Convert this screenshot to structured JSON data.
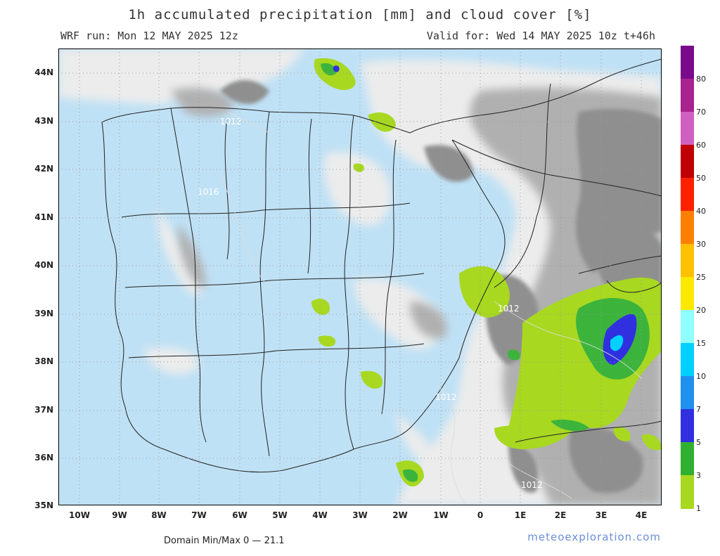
{
  "header": {
    "title": "1h accumulated precipitation [mm] and cloud cover [%]",
    "run": "WRF run: Mon 12 MAY 2025 12z",
    "valid": "Valid for: Wed 14 MAY 2025 10z  t+46h"
  },
  "axes": {
    "lat": [
      "44N",
      "43N",
      "42N",
      "41N",
      "40N",
      "39N",
      "38N",
      "37N",
      "36N",
      "35N"
    ],
    "lon": [
      "10W",
      "9W",
      "8W",
      "7W",
      "6W",
      "5W",
      "4W",
      "3W",
      "2W",
      "1W",
      "0",
      "1E",
      "2E",
      "3E",
      "4E"
    ]
  },
  "isobars": [
    "1012",
    "1012",
    "1012",
    "1012",
    "1016"
  ],
  "legend": {
    "labels": [
      "80",
      "70",
      "60",
      "50",
      "40",
      "30",
      "25",
      "20",
      "15",
      "10",
      "7",
      "5",
      "3",
      "1"
    ],
    "colors": [
      "#7a0a8c",
      "#a8238f",
      "#d060c0",
      "#c00000",
      "#ff2000",
      "#ff8000",
      "#ffc000",
      "#ffe800",
      "#90ffff",
      "#00d0ff",
      "#2090f0",
      "#3030e0",
      "#30b030",
      "#a8d820"
    ]
  },
  "footer": {
    "domain": "Domain Min/Max 0 — 21.1",
    "brand": "meteoexploration.com"
  },
  "colors": {
    "sea": "#9fd1ef",
    "land_clear": "#c0e2f6",
    "cloud_light": "#e6e6e6",
    "cloud_mid": "#b5b5b5",
    "cloud_dark": "#909090"
  }
}
